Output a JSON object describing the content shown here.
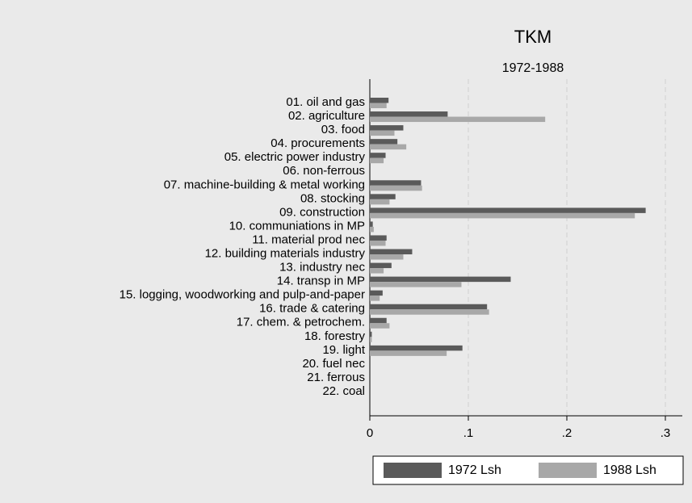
{
  "chart_data": {
    "type": "hbar",
    "title": "TKM",
    "subtitle": "1972-1988",
    "categories": [
      "01. oil and gas",
      "02. agriculture",
      "03. food",
      "04. procurements",
      "05. electric power industry",
      "06. non-ferrous",
      "07. machine-building & metal working",
      "08. stocking",
      "09. construction",
      "10. communiations in MP",
      "11. material prod nec",
      "12. building materials industry",
      "13. industry nec",
      "14. transp in MP",
      "15. logging, woodworking and pulp-and-paper",
      "16. trade & catering",
      "17. chem. & petrochem.",
      "18. forestry",
      "19. light",
      "20. fuel nec",
      "21. ferrous",
      "22. coal"
    ],
    "series": [
      {
        "name": "1972 Lsh",
        "color": "#5a5a5a",
        "values": [
          0.019,
          0.079,
          0.034,
          0.028,
          0.016,
          0,
          0.052,
          0.026,
          0.28,
          0.003,
          0.017,
          0.043,
          0.022,
          0.143,
          0.013,
          0.119,
          0.017,
          0.002,
          0.094,
          0,
          0,
          0
        ]
      },
      {
        "name": "1988 Lsh",
        "color": "#a8a8a8",
        "values": [
          0.017,
          0.178,
          0.025,
          0.037,
          0.014,
          0,
          0.053,
          0.02,
          0.269,
          0.004,
          0.016,
          0.034,
          0.014,
          0.093,
          0.01,
          0.121,
          0.02,
          0.002,
          0.078,
          0,
          0,
          0
        ]
      }
    ],
    "xlim": [
      0,
      0.3172
    ],
    "xticks": [
      0,
      {
        "value": 0.1,
        "label": ".1"
      },
      {
        "value": 0.2,
        "label": ".2"
      },
      {
        "value": 0.3,
        "label": ".3"
      }
    ],
    "grid": true,
    "legend": "bottom"
  }
}
